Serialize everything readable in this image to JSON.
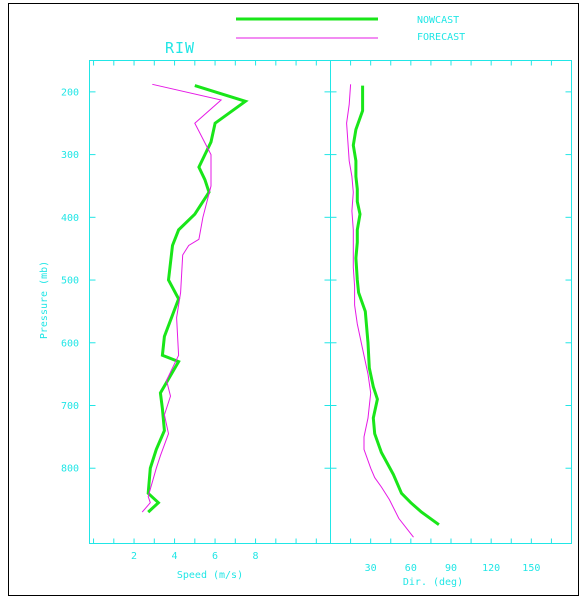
{
  "chart_data": {
    "type": "line",
    "title": "RIW",
    "colors": {
      "axis": "#21e6e6",
      "nowcast": "#19e619",
      "forecast": "#e619e6",
      "frame": "#000000"
    },
    "legend": {
      "placement": "top",
      "entries": [
        "NOWCAST",
        "FORECAST"
      ]
    },
    "ylabel": "Pressure (mb)",
    "y_ticks": [
      "200",
      "300",
      "400",
      "500",
      "600",
      "700",
      "800"
    ],
    "ylim": [
      150,
      920
    ],
    "y_inverted": true,
    "panels": [
      {
        "xlabel": "Speed (m/s)",
        "x_ticks": [
          "2",
          "4",
          "6",
          "8"
        ],
        "xlim": [
          -0.2,
          11.7
        ],
        "series": [
          {
            "name": "NOWCAST",
            "points": [
              [
                5.0,
                190
              ],
              [
                7.5,
                215
              ],
              [
                6.0,
                250
              ],
              [
                5.8,
                280
              ],
              [
                5.2,
                320
              ],
              [
                5.5,
                340
              ],
              [
                5.7,
                360
              ],
              [
                5.0,
                395
              ],
              [
                4.2,
                420
              ],
              [
                3.9,
                445
              ],
              [
                3.7,
                500
              ],
              [
                4.2,
                530
              ],
              [
                3.5,
                590
              ],
              [
                3.4,
                620
              ],
              [
                4.2,
                630
              ],
              [
                3.3,
                680
              ],
              [
                3.4,
                705
              ],
              [
                3.5,
                740
              ],
              [
                3.1,
                770
              ],
              [
                2.8,
                800
              ],
              [
                2.7,
                840
              ],
              [
                3.2,
                855
              ],
              [
                2.7,
                870
              ]
            ]
          },
          {
            "name": "FORECAST",
            "points": [
              [
                2.9,
                188
              ],
              [
                6.3,
                213
              ],
              [
                5.0,
                250
              ],
              [
                5.8,
                300
              ],
              [
                5.8,
                350
              ],
              [
                5.4,
                400
              ],
              [
                5.2,
                435
              ],
              [
                4.7,
                445
              ],
              [
                4.4,
                460
              ],
              [
                4.3,
                520
              ],
              [
                4.1,
                560
              ],
              [
                4.2,
                620
              ],
              [
                3.6,
                660
              ],
              [
                3.8,
                685
              ],
              [
                3.5,
                715
              ],
              [
                3.7,
                745
              ],
              [
                3.3,
                780
              ],
              [
                3.1,
                800
              ],
              [
                2.7,
                845
              ],
              [
                2.8,
                855
              ],
              [
                2.4,
                870
              ]
            ]
          }
        ]
      },
      {
        "xlabel": "Dir. (deg)",
        "x_ticks": [
          "30",
          "60",
          "90",
          "120",
          "150"
        ],
        "xlim": [
          0,
          180
        ],
        "series": [
          {
            "name": "NOWCAST",
            "points": [
              [
                24,
                190
              ],
              [
                24,
                230
              ],
              [
                19,
                260
              ],
              [
                17,
                285
              ],
              [
                19,
                310
              ],
              [
                19,
                335
              ],
              [
                20,
                355
              ],
              [
                20,
                375
              ],
              [
                22,
                395
              ],
              [
                20,
                420
              ],
              [
                20,
                440
              ],
              [
                19,
                465
              ],
              [
                20,
                500
              ],
              [
                21,
                520
              ],
              [
                26,
                550
              ],
              [
                28,
                600
              ],
              [
                29,
                640
              ],
              [
                32,
                670
              ],
              [
                35,
                690
              ],
              [
                32,
                720
              ],
              [
                33,
                745
              ],
              [
                38,
                775
              ],
              [
                47,
                810
              ],
              [
                53,
                840
              ],
              [
                60,
                855
              ],
              [
                68,
                870
              ],
              [
                81,
                890
              ]
            ]
          },
          {
            "name": "FORECAST",
            "points": [
              [
                15,
                188
              ],
              [
                14,
                220
              ],
              [
                12,
                250
              ],
              [
                13,
                280
              ],
              [
                14,
                310
              ],
              [
                16,
                335
              ],
              [
                17,
                360
              ],
              [
                16,
                390
              ],
              [
                17,
                420
              ],
              [
                17,
                450
              ],
              [
                17,
                480
              ],
              [
                18,
                510
              ],
              [
                18,
                540
              ],
              [
                20,
                570
              ],
              [
                24,
                610
              ],
              [
                28,
                650
              ],
              [
                30,
                680
              ],
              [
                28,
                720
              ],
              [
                25,
                750
              ],
              [
                25,
                770
              ],
              [
                30,
                800
              ],
              [
                33,
                815
              ],
              [
                38,
                830
              ],
              [
                44,
                850
              ],
              [
                51,
                880
              ],
              [
                62,
                910
              ]
            ]
          }
        ]
      }
    ]
  }
}
